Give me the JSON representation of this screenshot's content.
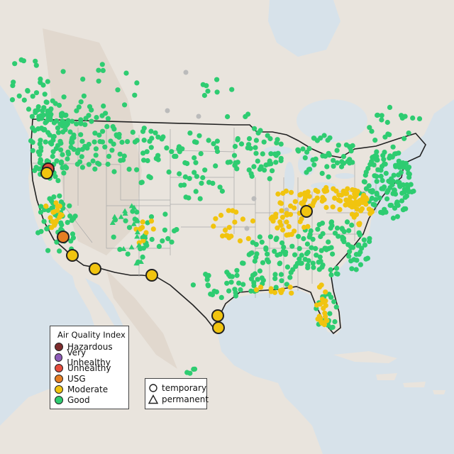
{
  "legend": {
    "title": "Air Quality Index",
    "items": [
      {
        "label": "Hazardous",
        "color": "#7e2d2d"
      },
      {
        "label": "Very Unhealthy",
        "color": "#8e5bb8"
      },
      {
        "label": "Unhealthy",
        "color": "#e74c3c"
      },
      {
        "label": "USG",
        "color": "#e67e22"
      },
      {
        "label": "Moderate",
        "color": "#f1c40f"
      },
      {
        "label": "Good",
        "color": "#2ecc71"
      }
    ]
  },
  "type_legend": {
    "temporary": "temporary",
    "permanent": "permanent"
  },
  "colors": {
    "water": "#d7e2ea",
    "land": "#e9e4dd",
    "mountains": "#ddd3c8",
    "state_border": "#a8a8a8",
    "country_border": "#222222",
    "no_data": "#bbbbbb"
  }
}
